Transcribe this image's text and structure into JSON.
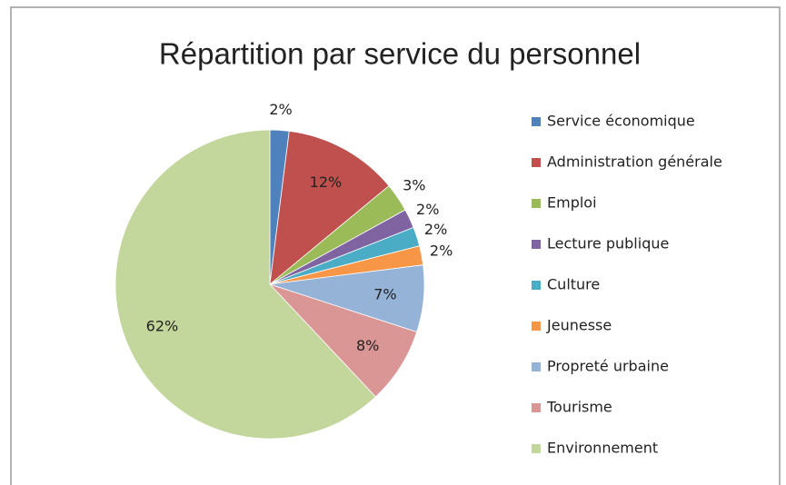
{
  "chart_data": {
    "type": "pie",
    "title": "Répartition par service du personnel",
    "categories": [
      "Service économique",
      "Administration générale",
      "Emploi",
      "Lecture publique",
      "Culture",
      "Jeunesse",
      "Propreté urbaine",
      "Tourisme",
      "Environnement"
    ],
    "values": [
      2,
      12,
      3,
      2,
      2,
      2,
      7,
      8,
      62
    ],
    "value_labels": [
      "2%",
      "12%",
      "3%",
      "2%",
      "2%",
      "2%",
      "7%",
      "8%",
      "62%"
    ],
    "colors": [
      "#4F81BD",
      "#C0504D",
      "#9BBB59",
      "#8064A2",
      "#4BACC6",
      "#F79646",
      "#95B3D7",
      "#D99694",
      "#C3D69B"
    ],
    "legend": "right"
  }
}
